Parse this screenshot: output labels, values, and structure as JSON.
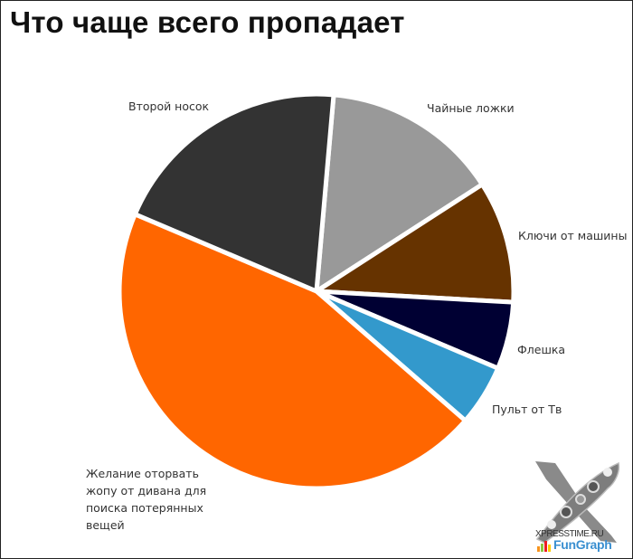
{
  "chart_data": {
    "type": "pie",
    "title": "Что чаще всего пропадает",
    "start_angle_deg": 5,
    "direction": "clockwise",
    "center": [
      350,
      322
    ],
    "radius": 218,
    "slices": [
      {
        "label": "Чайные ложки",
        "value": 14.5,
        "color": "#999999"
      },
      {
        "label": "Ключи от машины",
        "value": 10,
        "color": "#663300"
      },
      {
        "label": "Флешка",
        "value": 5.5,
        "color": "#000033"
      },
      {
        "label": "Пульт от Тв",
        "value": 5,
        "color": "#3399cc"
      },
      {
        "label": "Желание оторвать жопу от дивана для поиска потерянных вещей",
        "value": 45,
        "color": "#ff6600"
      },
      {
        "label": "Второй носок",
        "value": 20,
        "color": "#333333"
      }
    ],
    "legend": "none (labels beside slices)"
  },
  "labels": {
    "teaspoons": "Чайные ложки",
    "keys": "Ключи от машины",
    "flash": "Флешка",
    "remote": "Пульт от Тв",
    "sock": "Второй носок",
    "desire_lines": [
      "Желание оторвать",
      "жопу от дивана для",
      "поиска потерянных",
      "вещей"
    ]
  },
  "watermark": {
    "line1": "XPRESSTIME.RU",
    "line2": "FunGraph"
  }
}
